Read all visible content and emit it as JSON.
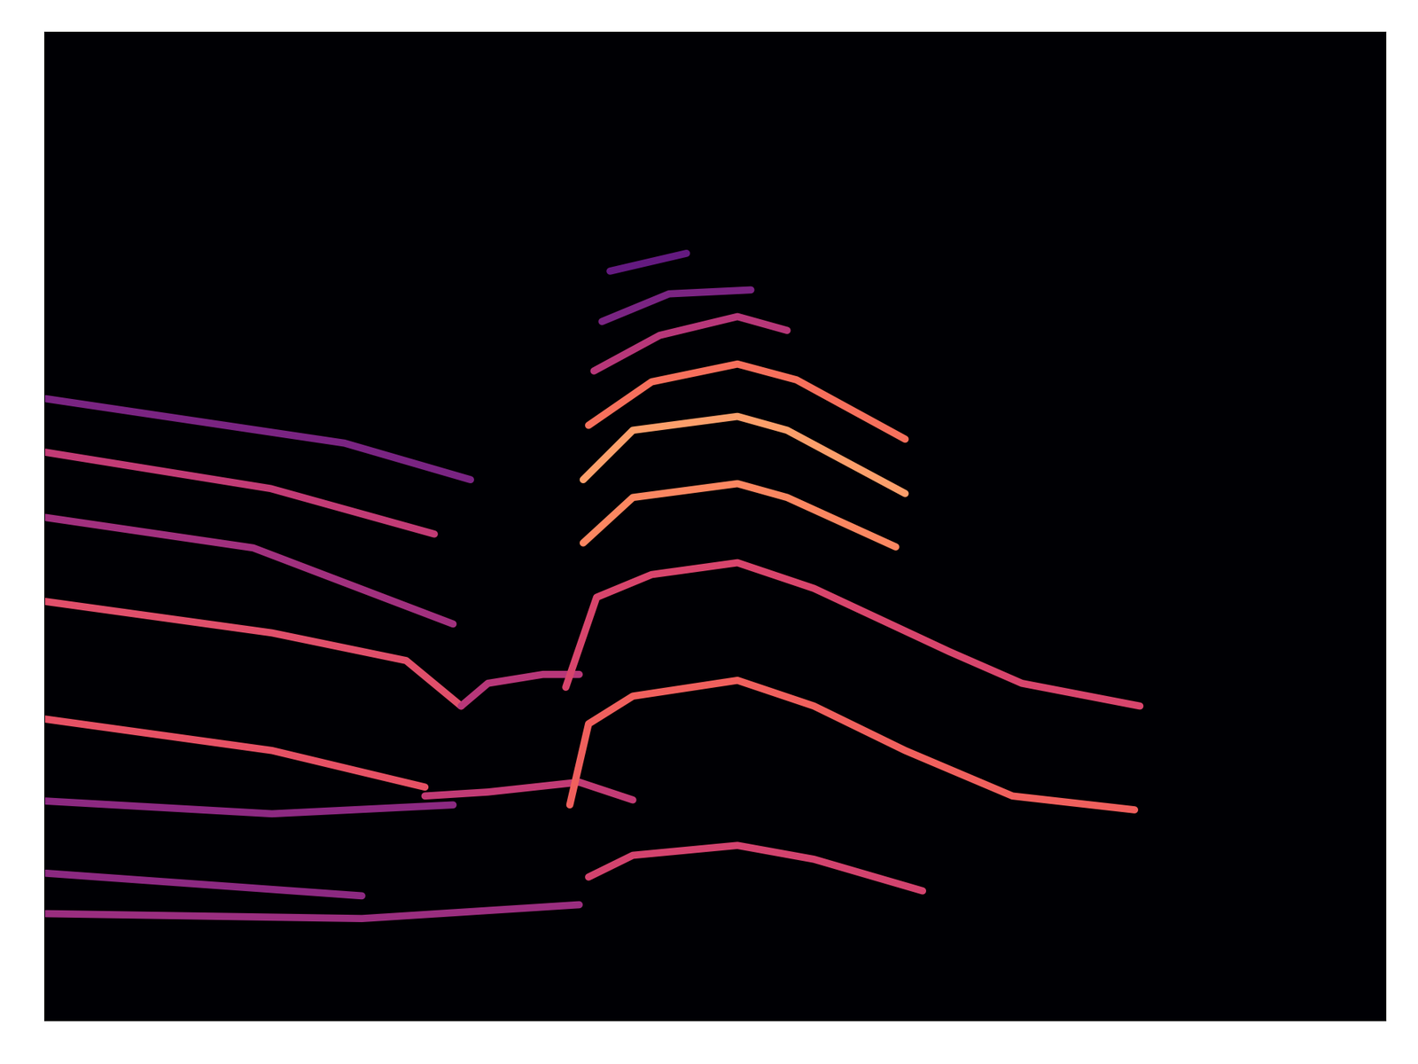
{
  "chart_data": {
    "type": "line",
    "tick_labels": false,
    "grid": false,
    "xlim": [
      0,
      100
    ],
    "ylim": [
      0,
      100
    ],
    "xticks": [],
    "yticks": [],
    "series": [
      {
        "color": "#7a2482",
        "x": [
          0.1,
          22.4,
          31.8
        ],
        "values": [
          62.9,
          58.4,
          54.7
        ]
      },
      {
        "color": "#c23b75",
        "x": [
          0,
          16.9,
          29.1
        ],
        "values": [
          57.5,
          53.8,
          49.2
        ]
      },
      {
        "color": "#a1307e",
        "x": [
          0,
          15.6,
          30.5
        ],
        "values": [
          50.9,
          47.8,
          40.1
        ]
      },
      {
        "color": "#e04f6a",
        "x": [
          0,
          17,
          27,
          31.1
        ],
        "values": [
          42.4,
          39.2,
          36.4,
          31.8
        ]
      },
      {
        "color": "#e65164",
        "x": [
          0,
          17,
          28.4
        ],
        "values": [
          30.5,
          27.3,
          23.6
        ]
      },
      {
        "color": "#8c2981",
        "x": [
          0,
          17,
          30.5
        ],
        "values": [
          22.2,
          20.9,
          21.8
        ]
      },
      {
        "color": "#8c2981",
        "x": [
          0,
          23.7
        ],
        "values": [
          14.9,
          12.6
        ]
      },
      {
        "color": "#9a2e7f",
        "x": [
          0,
          23.7,
          39.9
        ],
        "values": [
          10.8,
          10.3,
          11.7
        ]
      },
      {
        "color": "#b73779",
        "x": [
          31.1,
          33.1,
          37.2,
          39.9
        ],
        "values": [
          31.8,
          34.1,
          35.0,
          35.0
        ]
      },
      {
        "color": "#c23b75",
        "x": [
          28.4,
          33.1,
          39.9,
          43.9
        ],
        "values": [
          22.7,
          23.1,
          24.1,
          22.3
        ]
      },
      {
        "color": "#f0605d",
        "x": [
          39.2,
          40.6,
          43.9,
          51.7,
          57.4,
          64.2,
          72.2,
          81.3
        ],
        "values": [
          21.8,
          30.0,
          32.8,
          34.4,
          31.8,
          27.3,
          22.7,
          21.3
        ]
      },
      {
        "color": "#d8456c",
        "x": [
          38.9,
          41.2,
          45.3,
          51.7,
          57.4,
          67.5,
          72.9,
          81.7
        ],
        "values": [
          33.7,
          42.8,
          45.1,
          46.3,
          43.7,
          37.3,
          34.1,
          31.8
        ]
      },
      {
        "color": "#fb8761",
        "x": [
          40.2,
          43.9,
          51.7,
          55.4,
          63.5
        ],
        "values": [
          48.3,
          52.9,
          54.3,
          52.9,
          47.9
        ]
      },
      {
        "color": "#fc9f6b",
        "x": [
          40.2,
          43.9,
          51.7,
          55.4,
          64.2
        ],
        "values": [
          54.7,
          59.7,
          61.1,
          59.7,
          53.3
        ]
      },
      {
        "color": "#f7705c",
        "x": [
          40.6,
          45.3,
          51.7,
          56.1,
          64.2
        ],
        "values": [
          60.2,
          64.6,
          66.4,
          64.8,
          58.8
        ]
      },
      {
        "color": "#b73779",
        "x": [
          41,
          45.9,
          51.7,
          55.4
        ],
        "values": [
          65.7,
          69.3,
          71.2,
          69.8
        ]
      },
      {
        "color": "#7a2482",
        "x": [
          41.6,
          46.6,
          52.7
        ],
        "values": [
          70.7,
          73.5,
          73.9
        ]
      },
      {
        "color": "#641a80",
        "x": [
          42.2,
          47.9
        ],
        "values": [
          75.8,
          77.6
        ]
      },
      {
        "color": "#d3436e",
        "x": [
          40.6,
          43.9,
          51.7,
          57.4,
          65.5
        ],
        "values": [
          14.5,
          16.7,
          17.7,
          16.3,
          13.1
        ]
      }
    ]
  }
}
